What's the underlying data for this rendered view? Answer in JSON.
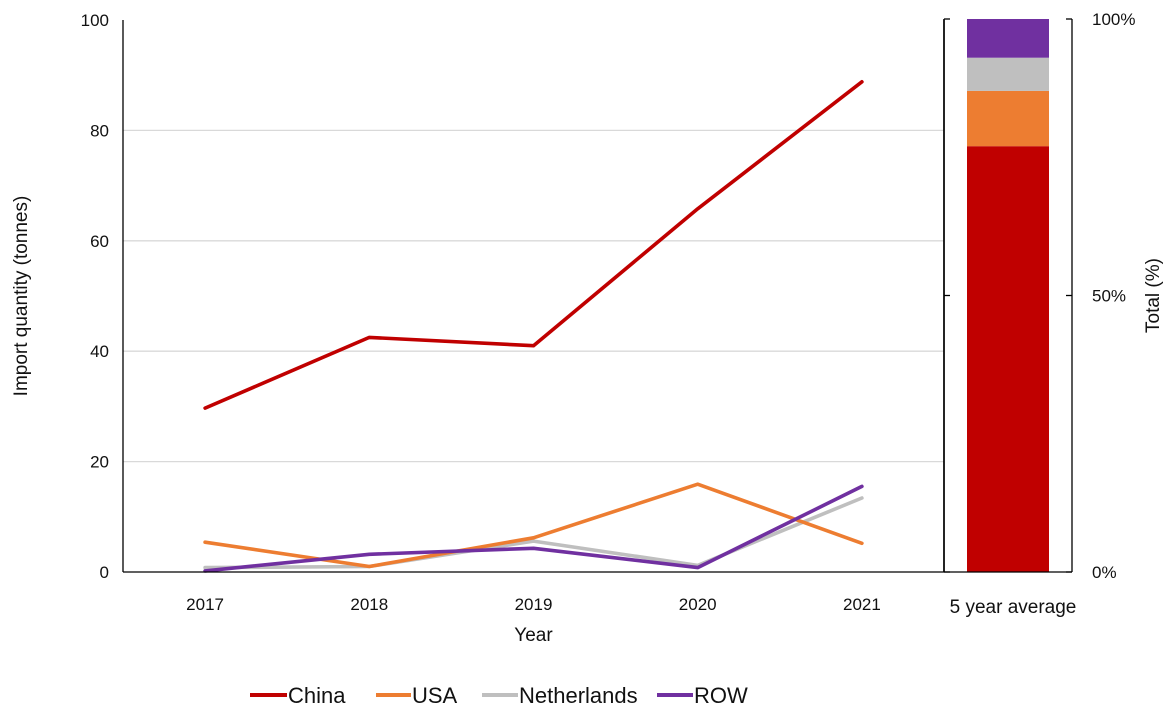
{
  "chart_data": [
    {
      "type": "line",
      "xlabel": "Year",
      "ylabel": "Import quantity  (tonnes)",
      "categories": [
        "2017",
        "2018",
        "2019",
        "2020",
        "2021"
      ],
      "ylim": [
        0,
        100
      ],
      "yticks": [
        "0",
        "20",
        "40",
        "60",
        "80",
        "100"
      ],
      "grid": true,
      "legend": "bottom",
      "series": [
        {
          "name": "China",
          "color": "#C00000",
          "values": [
            29.7,
            42.5,
            41.0,
            65.8,
            88.8
          ]
        },
        {
          "name": "USA",
          "color": "#ED7D31",
          "values": [
            5.4,
            1.0,
            6.2,
            15.9,
            5.2
          ]
        },
        {
          "name": "Netherlands",
          "color": "#BFBFBF",
          "values": [
            0.8,
            1.0,
            5.6,
            1.2,
            13.4
          ]
        },
        {
          "name": "ROW",
          "color": "#7030A0",
          "values": [
            0.2,
            3.2,
            4.3,
            0.8,
            15.5
          ]
        }
      ]
    },
    {
      "type": "bar",
      "stacked": true,
      "categories": [
        "5 year average"
      ],
      "ylabel": "Total (%)",
      "ylim": [
        0,
        100
      ],
      "yticks": [
        "0%",
        "50%",
        "100%"
      ],
      "series": [
        {
          "name": "China",
          "color": "#C00000",
          "values": [
            77
          ]
        },
        {
          "name": "USA",
          "color": "#ED7D31",
          "values": [
            10
          ]
        },
        {
          "name": "Netherlands",
          "color": "#BFBFBF",
          "values": [
            6
          ]
        },
        {
          "name": "ROW",
          "color": "#7030A0",
          "values": [
            7
          ]
        }
      ]
    }
  ]
}
